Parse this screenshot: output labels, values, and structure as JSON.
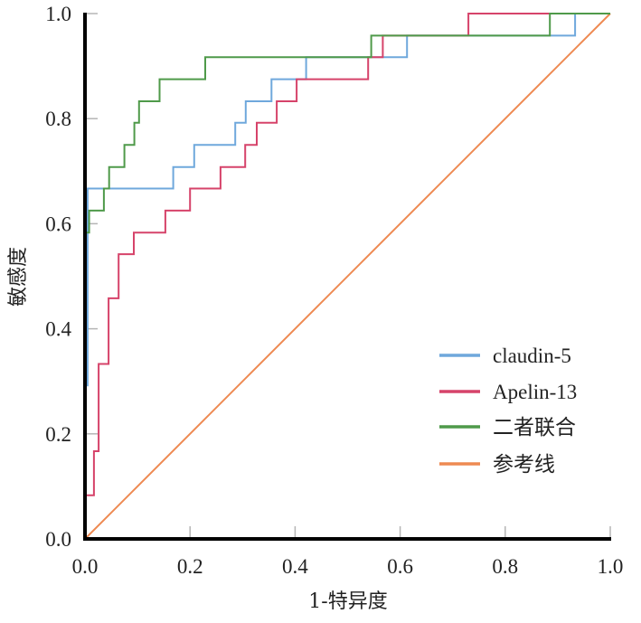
{
  "chart_data": {
    "type": "line",
    "title": "",
    "xlabel": "1-特异度",
    "ylabel": "敏感度",
    "xlim": [
      0,
      1
    ],
    "ylim": [
      0,
      1
    ],
    "grid": false,
    "legend_position": "bottom-right",
    "xticks": [
      "0.0",
      "0.2",
      "0.4",
      "0.6",
      "0.8",
      "1.0"
    ],
    "yticks": [
      "0.0",
      "0.2",
      "0.4",
      "0.6",
      "0.8",
      "1.0"
    ],
    "xtick_values": [
      0,
      0.2,
      0.4,
      0.6,
      0.8,
      1.0
    ],
    "ytick_values": [
      0,
      0.2,
      0.4,
      0.6,
      0.8,
      1.0
    ],
    "series": [
      {
        "name": "claudin-5",
        "color": "#6fa8dc",
        "step": true,
        "points": [
          [
            0,
            0
          ],
          [
            0,
            0.292
          ],
          [
            0.005,
            0.292
          ],
          [
            0.005,
            0.667
          ],
          [
            0.168,
            0.667
          ],
          [
            0.168,
            0.708
          ],
          [
            0.208,
            0.708
          ],
          [
            0.208,
            0.75
          ],
          [
            0.286,
            0.75
          ],
          [
            0.286,
            0.792
          ],
          [
            0.306,
            0.792
          ],
          [
            0.306,
            0.833
          ],
          [
            0.355,
            0.833
          ],
          [
            0.355,
            0.875
          ],
          [
            0.421,
            0.875
          ],
          [
            0.421,
            0.917
          ],
          [
            0.613,
            0.917
          ],
          [
            0.613,
            0.958
          ],
          [
            0.933,
            0.958
          ],
          [
            0.933,
            1.0
          ],
          [
            1.0,
            1.0
          ]
        ]
      },
      {
        "name": "Apelin-13",
        "color": "#d6436a",
        "step": true,
        "points": [
          [
            0,
            0
          ],
          [
            0,
            0.083
          ],
          [
            0.017,
            0.083
          ],
          [
            0.017,
            0.167
          ],
          [
            0.026,
            0.167
          ],
          [
            0.026,
            0.333
          ],
          [
            0.045,
            0.333
          ],
          [
            0.045,
            0.458
          ],
          [
            0.064,
            0.458
          ],
          [
            0.064,
            0.542
          ],
          [
            0.093,
            0.542
          ],
          [
            0.093,
            0.583
          ],
          [
            0.153,
            0.583
          ],
          [
            0.153,
            0.625
          ],
          [
            0.2,
            0.625
          ],
          [
            0.2,
            0.667
          ],
          [
            0.258,
            0.667
          ],
          [
            0.258,
            0.708
          ],
          [
            0.305,
            0.708
          ],
          [
            0.305,
            0.75
          ],
          [
            0.327,
            0.75
          ],
          [
            0.327,
            0.792
          ],
          [
            0.365,
            0.792
          ],
          [
            0.365,
            0.833
          ],
          [
            0.403,
            0.833
          ],
          [
            0.403,
            0.875
          ],
          [
            0.539,
            0.875
          ],
          [
            0.539,
            0.917
          ],
          [
            0.567,
            0.917
          ],
          [
            0.567,
            0.958
          ],
          [
            0.73,
            0.958
          ],
          [
            0.73,
            1.0
          ],
          [
            1.0,
            1.0
          ]
        ]
      },
      {
        "name": "二者联合",
        "color": "#4f9a4a",
        "step": true,
        "points": [
          [
            0,
            0
          ],
          [
            0,
            0.583
          ],
          [
            0.008,
            0.583
          ],
          [
            0.008,
            0.625
          ],
          [
            0.036,
            0.625
          ],
          [
            0.036,
            0.667
          ],
          [
            0.046,
            0.667
          ],
          [
            0.046,
            0.708
          ],
          [
            0.075,
            0.708
          ],
          [
            0.075,
            0.75
          ],
          [
            0.094,
            0.75
          ],
          [
            0.094,
            0.792
          ],
          [
            0.103,
            0.792
          ],
          [
            0.103,
            0.833
          ],
          [
            0.142,
            0.833
          ],
          [
            0.142,
            0.875
          ],
          [
            0.229,
            0.875
          ],
          [
            0.229,
            0.917
          ],
          [
            0.545,
            0.917
          ],
          [
            0.545,
            0.958
          ],
          [
            0.885,
            0.958
          ],
          [
            0.885,
            1.0
          ],
          [
            1.0,
            1.0
          ]
        ]
      },
      {
        "name": "参考线",
        "color": "#ee8a52",
        "step": false,
        "points": [
          [
            0,
            0
          ],
          [
            1,
            1
          ]
        ]
      }
    ]
  }
}
